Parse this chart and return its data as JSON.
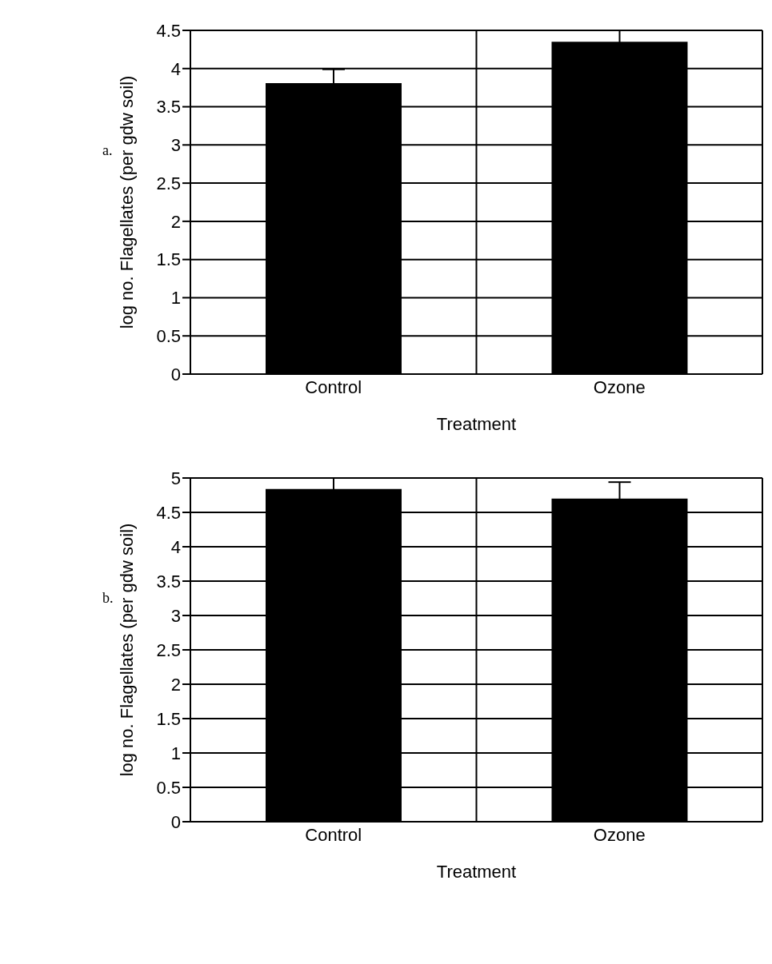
{
  "chart_data": [
    {
      "type": "bar",
      "annotations": [
        "a."
      ],
      "xlabel": "Treatment",
      "ylabel": "log no. Flagellates (per gdw soil)",
      "categories": [
        "Control",
        "Ozone"
      ],
      "values": [
        3.81,
        4.35
      ],
      "errors": [
        0.18,
        0.15
      ],
      "color": "#000000",
      "ylim": [
        0,
        4.5
      ],
      "yticks": [
        0,
        0.5,
        1,
        1.5,
        2,
        2.5,
        3,
        3.5,
        4,
        4.5
      ],
      "grid": true
    },
    {
      "type": "bar",
      "annotations": [
        "b."
      ],
      "xlabel": "Treatment",
      "ylabel": "log no. Flagellates (per gdw soil)",
      "categories": [
        "Control",
        "Ozone"
      ],
      "values": [
        4.84,
        4.7
      ],
      "errors": [
        0.16,
        0.24
      ],
      "color": "#000000",
      "ylim": [
        0,
        5
      ],
      "yticks": [
        0,
        0.5,
        1,
        1.5,
        2,
        2.5,
        3,
        3.5,
        4,
        4.5,
        5
      ],
      "grid": true
    }
  ]
}
